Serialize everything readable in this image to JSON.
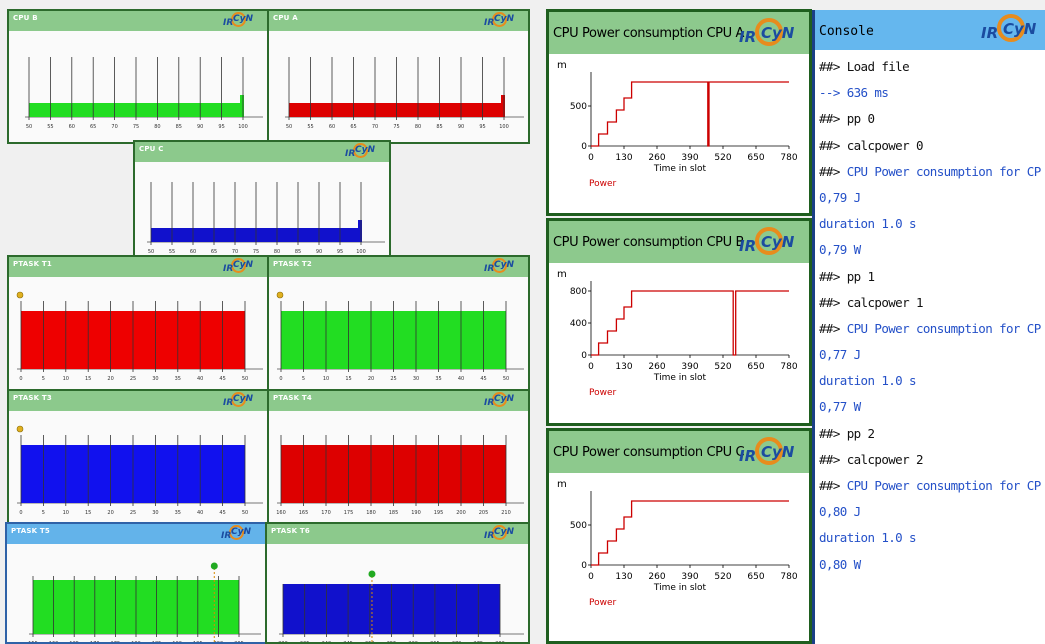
{
  "cpu_windows": [
    {
      "title": "CPU B",
      "bar_color": "#22dd22",
      "ticks": [
        "50",
        "55",
        "60",
        "65",
        "70",
        "75",
        "80",
        "85",
        "90",
        "95",
        "100"
      ],
      "fill": 1.0
    },
    {
      "title": "CPU A",
      "bar_color": "#dd0000",
      "ticks": [
        "50",
        "55",
        "60",
        "65",
        "70",
        "75",
        "80",
        "85",
        "90",
        "95",
        "100"
      ],
      "fill": 1.0
    },
    {
      "title": "CPU C",
      "bar_color": "#1111cc",
      "ticks": [
        "50",
        "55",
        "60",
        "65",
        "70",
        "75",
        "80",
        "85",
        "90",
        "95",
        "100"
      ],
      "fill": 1.0
    }
  ],
  "task_windows": [
    {
      "title": "PTASK T1",
      "bar_color": "#ee0000",
      "ticks": [
        "0",
        "5",
        "10",
        "15",
        "20",
        "25",
        "30",
        "35",
        "40",
        "45",
        "50"
      ]
    },
    {
      "title": "PTASK T2",
      "bar_color": "#22dd22",
      "ticks": [
        "0",
        "5",
        "10",
        "15",
        "20",
        "25",
        "30",
        "35",
        "40",
        "45",
        "50"
      ]
    },
    {
      "title": "PTASK T3",
      "bar_color": "#1111ee",
      "ticks": [
        "0",
        "5",
        "10",
        "15",
        "20",
        "25",
        "30",
        "35",
        "40",
        "45",
        "50"
      ]
    },
    {
      "title": "PTASK T4",
      "bar_color": "#dd0000",
      "ticks": [
        "160",
        "165",
        "170",
        "175",
        "180",
        "185",
        "190",
        "195",
        "200",
        "205",
        "210"
      ]
    },
    {
      "title": "PTASK T5",
      "bar_color": "#22dd22",
      "ticks": [
        "155",
        "160",
        "165",
        "170",
        "175",
        "180",
        "185",
        "190",
        "195",
        "200",
        "205"
      ]
    },
    {
      "title": "PTASK T6",
      "bar_color": "#1111cc",
      "ticks": [
        "230",
        "235",
        "240",
        "245",
        "250",
        "255",
        "260",
        "265",
        "270",
        "275",
        "280"
      ]
    }
  ],
  "power_windows": [
    {
      "title": "CPU Power consumption  CPU A",
      "unit": "m",
      "yticks": [
        "0",
        "500"
      ],
      "xticks": [
        "0",
        "130",
        "260",
        "390",
        "520",
        "650",
        "780"
      ],
      "xlabel": "Time in slot",
      "legend": "Power"
    },
    {
      "title": "CPU Power consumption  CPU B",
      "unit": "m",
      "yticks": [
        "0",
        "400",
        "800"
      ],
      "xticks": [
        "0",
        "130",
        "260",
        "390",
        "520",
        "650",
        "780"
      ],
      "xlabel": "Time in slot",
      "legend": "Power"
    },
    {
      "title": "CPU Power consumption  CPU C",
      "unit": "m",
      "yticks": [
        "0",
        "500"
      ],
      "xticks": [
        "0",
        "130",
        "260",
        "390",
        "520",
        "650",
        "780"
      ],
      "xlabel": "Time in slot",
      "legend": "Power"
    }
  ],
  "logo": {
    "ir": "IR",
    "cyn": "CyN"
  },
  "console": {
    "title": "Console",
    "lines": [
      {
        "text": "##> Load file",
        "color": "black"
      },
      {
        "text": "--> 636 ms",
        "color": "blue"
      },
      {
        "text": "##> pp 0",
        "color": "black"
      },
      {
        "text": "##> calcpower 0",
        "color": "black"
      },
      {
        "text": "##> CPU Power consumption for CPU A",
        "color": "mixed"
      },
      {
        "text": "0,79 J",
        "color": "blue"
      },
      {
        "text": "duration 1.0 s",
        "color": "blue"
      },
      {
        "text": "0,79 W",
        "color": "blue"
      },
      {
        "text": "##> pp 1",
        "color": "black"
      },
      {
        "text": "##> calcpower 1",
        "color": "black"
      },
      {
        "text": "##> CPU Power consumption for CPU B",
        "color": "mixed"
      },
      {
        "text": "0,77 J",
        "color": "blue"
      },
      {
        "text": "duration 1.0 s",
        "color": "blue"
      },
      {
        "text": "0,77 W",
        "color": "blue"
      },
      {
        "text": "##> pp 2",
        "color": "black"
      },
      {
        "text": "##> calcpower 2",
        "color": "black"
      },
      {
        "text": "##> CPU Power consumption for CPU C",
        "color": "mixed"
      },
      {
        "text": "0,80 J",
        "color": "blue"
      },
      {
        "text": "duration 1.0 s",
        "color": "blue"
      },
      {
        "text": "0,80 W",
        "color": "blue"
      }
    ]
  },
  "colors": {
    "green_border": "#2c6a2c",
    "title_green": "#8cc98c",
    "title_blue": "#63b3ea",
    "console_blue_text": "#2450c8",
    "plot_line": "#cc0000"
  },
  "chart_data": [
    {
      "type": "line",
      "title": "CPU Power consumption  CPU A",
      "xlabel": "Time in slot",
      "ylabel": "m",
      "series": [
        {
          "name": "Power",
          "x": [
            0,
            30,
            30,
            65,
            65,
            100,
            100,
            130,
            130,
            160,
            160,
            260,
            260,
            460,
            460,
            465,
            465,
            780
          ],
          "y": [
            0,
            0,
            150,
            150,
            300,
            300,
            450,
            450,
            600,
            600,
            800,
            800,
            800,
            800,
            0,
            0,
            800,
            800
          ]
        }
      ],
      "xlim": [
        0,
        780
      ]
    },
    {
      "type": "line",
      "title": "CPU Power consumption  CPU B",
      "xlabel": "Time in slot",
      "ylabel": "m",
      "series": [
        {
          "name": "Power",
          "x": [
            0,
            30,
            30,
            65,
            65,
            100,
            100,
            130,
            130,
            160,
            160,
            260,
            260,
            560,
            560,
            570,
            570,
            780
          ],
          "y": [
            0,
            0,
            150,
            150,
            300,
            300,
            450,
            450,
            600,
            600,
            800,
            800,
            800,
            800,
            0,
            0,
            800,
            800
          ]
        }
      ],
      "xlim": [
        0,
        780
      ]
    },
    {
      "type": "line",
      "title": "CPU Power consumption  CPU C",
      "xlabel": "Time in slot",
      "ylabel": "m",
      "series": [
        {
          "name": "Power",
          "x": [
            0,
            30,
            30,
            65,
            65,
            100,
            100,
            130,
            130,
            160,
            160,
            260,
            260,
            780
          ],
          "y": [
            0,
            0,
            150,
            150,
            300,
            300,
            450,
            450,
            600,
            600,
            800,
            800,
            800,
            800
          ]
        }
      ],
      "xlim": [
        0,
        780
      ]
    }
  ]
}
